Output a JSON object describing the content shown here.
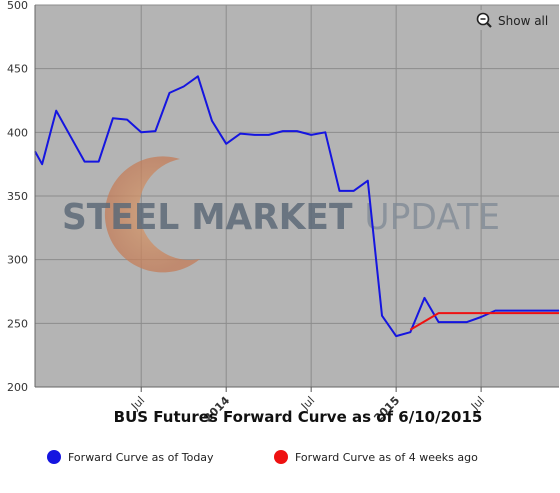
{
  "chart_data": {
    "type": "line",
    "title": "BUS Futures Forward Curve as of 6/10/2015",
    "ylim": [
      200,
      500
    ],
    "y_ticks": [
      200,
      250,
      300,
      350,
      400,
      450,
      500
    ],
    "x_ticks": [
      {
        "label": "Jul",
        "month": 6,
        "bold": false
      },
      {
        "label": "2014",
        "month": 12,
        "bold": true
      },
      {
        "label": "Jul",
        "month": 18,
        "bold": false
      },
      {
        "label": "2015",
        "month": 24,
        "bold": true
      },
      {
        "label": "Jul",
        "month": 30,
        "bold": false
      }
    ],
    "xlim_months": [
      -1.5,
      35.5
    ],
    "grid": true,
    "legend_position": "bottom",
    "series": [
      {
        "name": "Forward Curve as of Today",
        "color": "#1515e0",
        "points": [
          [
            -1.5,
            385
          ],
          [
            -1,
            375
          ],
          [
            0,
            417
          ],
          [
            1,
            397
          ],
          [
            2,
            377
          ],
          [
            3,
            377
          ],
          [
            4,
            411
          ],
          [
            5,
            410
          ],
          [
            6,
            400
          ],
          [
            7,
            401
          ],
          [
            8,
            431
          ],
          [
            9,
            436
          ],
          [
            10,
            444
          ],
          [
            11,
            409
          ],
          [
            12,
            391
          ],
          [
            13,
            399
          ],
          [
            14,
            398
          ],
          [
            15,
            398
          ],
          [
            16,
            401
          ],
          [
            17,
            401
          ],
          [
            18,
            398
          ],
          [
            19,
            400
          ],
          [
            20,
            354
          ],
          [
            21,
            354
          ],
          [
            22,
            362
          ],
          [
            23,
            256
          ],
          [
            24,
            240
          ],
          [
            25,
            243
          ],
          [
            26,
            270
          ],
          [
            27,
            251
          ],
          [
            28,
            251
          ],
          [
            29,
            251
          ],
          [
            30,
            255
          ],
          [
            31,
            260
          ],
          [
            32,
            260
          ],
          [
            33,
            260
          ],
          [
            35.5,
            260
          ]
        ]
      },
      {
        "name": "Forward Curve as of 4 weeks ago",
        "color": "#ee1111",
        "points": [
          [
            25,
            245
          ],
          [
            27,
            258
          ],
          [
            28,
            258
          ],
          [
            29,
            258
          ],
          [
            30,
            258
          ],
          [
            31,
            258
          ],
          [
            32,
            258
          ],
          [
            33,
            258
          ],
          [
            35.5,
            258
          ]
        ]
      }
    ]
  },
  "watermark": {
    "line_a": "STEEL MARKET ",
    "line_b": "UPDATE"
  },
  "controls": {
    "show_all_label": "Show all",
    "zoom_icon": "zoom-out-magnifier-icon"
  }
}
